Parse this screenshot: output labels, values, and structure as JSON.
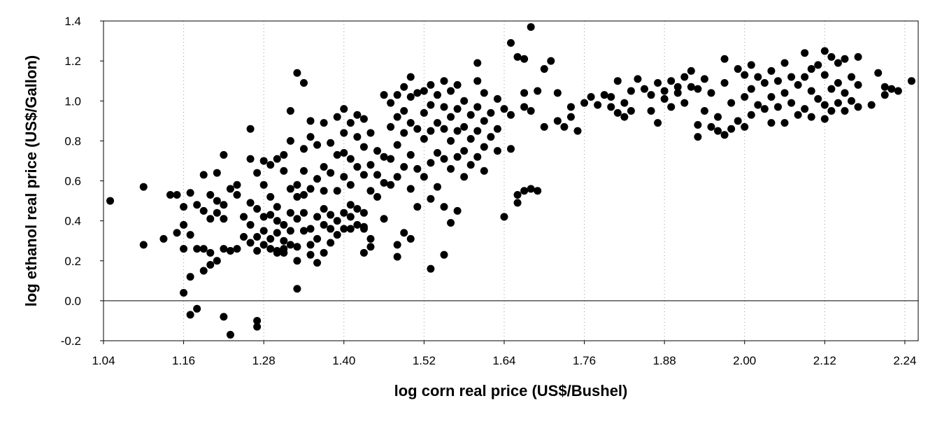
{
  "chart_data": {
    "type": "scatter",
    "xlabel": "log corn real price (US$/Bushel)",
    "ylabel": "log ethanol real price (US$/Gallon)",
    "xlim": [
      1.04,
      2.26
    ],
    "ylim": [
      -0.2,
      1.4
    ],
    "x_ticks": [
      "1.04",
      "1.16",
      "1.28",
      "1.40",
      "1.52",
      "1.64",
      "1.76",
      "1.88",
      "2.00",
      "2.12",
      "2.24"
    ],
    "y_ticks": [
      "-0.2",
      "0.0",
      "0.2",
      "0.4",
      "0.6",
      "0.8",
      "1.0",
      "1.2",
      "1.4"
    ],
    "grid": "vertical dotted at x ticks",
    "reference_line_y": 0.0,
    "marker_color": "#000000",
    "points": [
      [
        1.05,
        0.5
      ],
      [
        1.1,
        0.57
      ],
      [
        1.1,
        0.28
      ],
      [
        1.13,
        0.31
      ],
      [
        1.14,
        0.53
      ],
      [
        1.15,
        0.53
      ],
      [
        1.15,
        0.34
      ],
      [
        1.16,
        0.47
      ],
      [
        1.16,
        0.38
      ],
      [
        1.16,
        0.26
      ],
      [
        1.16,
        0.04
      ],
      [
        1.17,
        0.54
      ],
      [
        1.17,
        0.33
      ],
      [
        1.17,
        0.12
      ],
      [
        1.17,
        -0.07
      ],
      [
        1.18,
        -0.04
      ],
      [
        1.18,
        0.26
      ],
      [
        1.18,
        0.48
      ],
      [
        1.19,
        0.63
      ],
      [
        1.19,
        0.45
      ],
      [
        1.19,
        0.15
      ],
      [
        1.19,
        0.26
      ],
      [
        1.2,
        0.53
      ],
      [
        1.2,
        0.41
      ],
      [
        1.2,
        0.24
      ],
      [
        1.2,
        0.18
      ],
      [
        1.21,
        0.64
      ],
      [
        1.21,
        0.5
      ],
      [
        1.21,
        0.44
      ],
      [
        1.21,
        0.2
      ],
      [
        1.22,
        0.73
      ],
      [
        1.22,
        0.48
      ],
      [
        1.22,
        0.41
      ],
      [
        1.22,
        0.26
      ],
      [
        1.22,
        -0.08
      ],
      [
        1.23,
        0.56
      ],
      [
        1.23,
        0.25
      ],
      [
        1.23,
        -0.17
      ],
      [
        1.24,
        0.58
      ],
      [
        1.24,
        0.53
      ],
      [
        1.24,
        0.26
      ],
      [
        1.25,
        0.42
      ],
      [
        1.25,
        0.32
      ],
      [
        1.26,
        0.49
      ],
      [
        1.26,
        0.38
      ],
      [
        1.26,
        0.29
      ],
      [
        1.27,
        0.46
      ],
      [
        1.27,
        0.32
      ],
      [
        1.27,
        0.25
      ],
      [
        1.28,
        0.42
      ],
      [
        1.28,
        0.35
      ],
      [
        1.28,
        0.28
      ],
      [
        1.29,
        0.31
      ],
      [
        1.29,
        0.26
      ],
      [
        1.3,
        0.4
      ],
      [
        1.3,
        0.34
      ],
      [
        1.3,
        0.25
      ],
      [
        1.29,
        0.43
      ],
      [
        1.31,
        0.38
      ],
      [
        1.31,
        0.3
      ],
      [
        1.31,
        0.26
      ],
      [
        1.32,
        0.44
      ],
      [
        1.32,
        0.35
      ],
      [
        1.32,
        0.28
      ],
      [
        1.33,
        0.41
      ],
      [
        1.33,
        0.27
      ],
      [
        1.34,
        0.65
      ],
      [
        1.34,
        0.53
      ],
      [
        1.34,
        0.44
      ],
      [
        1.34,
        0.35
      ],
      [
        1.35,
        0.36
      ],
      [
        1.35,
        0.28
      ],
      [
        1.36,
        0.42
      ],
      [
        1.36,
        0.31
      ],
      [
        1.37,
        0.46
      ],
      [
        1.37,
        0.38
      ],
      [
        1.38,
        0.43
      ],
      [
        1.38,
        0.36
      ],
      [
        1.38,
        0.29
      ],
      [
        1.39,
        0.4
      ],
      [
        1.39,
        0.33
      ],
      [
        1.4,
        0.44
      ],
      [
        1.4,
        0.36
      ],
      [
        1.41,
        0.42
      ],
      [
        1.41,
        0.36
      ],
      [
        1.41,
        0.48
      ],
      [
        1.42,
        0.46
      ],
      [
        1.42,
        0.38
      ],
      [
        1.43,
        0.44
      ],
      [
        1.43,
        0.37
      ],
      [
        1.26,
        0.86
      ],
      [
        1.26,
        0.71
      ],
      [
        1.27,
        0.64
      ],
      [
        1.28,
        0.7
      ],
      [
        1.28,
        0.58
      ],
      [
        1.29,
        0.52
      ],
      [
        1.29,
        0.68
      ],
      [
        1.3,
        0.71
      ],
      [
        1.3,
        0.47
      ],
      [
        1.31,
        0.73
      ],
      [
        1.31,
        0.65
      ],
      [
        1.32,
        0.95
      ],
      [
        1.32,
        0.8
      ],
      [
        1.32,
        0.56
      ],
      [
        1.33,
        1.14
      ],
      [
        1.33,
        0.58
      ],
      [
        1.33,
        0.52
      ],
      [
        1.34,
        1.09
      ],
      [
        1.34,
        0.76
      ],
      [
        1.35,
        0.9
      ],
      [
        1.35,
        0.82
      ],
      [
        1.35,
        0.56
      ],
      [
        1.36,
        0.78
      ],
      [
        1.36,
        0.61
      ],
      [
        1.37,
        0.89
      ],
      [
        1.37,
        0.67
      ],
      [
        1.37,
        0.55
      ],
      [
        1.38,
        0.79
      ],
      [
        1.38,
        0.64
      ],
      [
        1.39,
        0.92
      ],
      [
        1.39,
        0.73
      ],
      [
        1.39,
        0.55
      ],
      [
        1.4,
        0.96
      ],
      [
        1.4,
        0.84
      ],
      [
        1.4,
        0.74
      ],
      [
        1.4,
        0.62
      ],
      [
        1.41,
        0.89
      ],
      [
        1.41,
        0.71
      ],
      [
        1.41,
        0.58
      ],
      [
        1.42,
        0.93
      ],
      [
        1.42,
        0.82
      ],
      [
        1.42,
        0.67
      ],
      [
        1.43,
        0.91
      ],
      [
        1.43,
        0.77
      ],
      [
        1.43,
        0.63
      ],
      [
        1.44,
        0.84
      ],
      [
        1.44,
        0.68
      ],
      [
        1.44,
        0.55
      ],
      [
        1.45,
        0.75
      ],
      [
        1.45,
        0.63
      ],
      [
        1.45,
        0.52
      ],
      [
        1.46,
        1.03
      ],
      [
        1.46,
        0.72
      ],
      [
        1.46,
        0.59
      ],
      [
        1.3,
        0.24
      ],
      [
        1.31,
        0.24
      ],
      [
        1.33,
        0.2
      ],
      [
        1.33,
        0.06
      ],
      [
        1.35,
        0.23
      ],
      [
        1.36,
        0.19
      ],
      [
        1.37,
        0.24
      ],
      [
        1.27,
        -0.1
      ],
      [
        1.27,
        -0.13
      ],
      [
        1.43,
        0.36
      ],
      [
        1.43,
        0.24
      ],
      [
        1.44,
        0.27
      ],
      [
        1.44,
        0.31
      ],
      [
        1.46,
        0.41
      ],
      [
        1.48,
        0.22
      ],
      [
        1.48,
        0.28
      ],
      [
        1.49,
        0.34
      ],
      [
        1.5,
        0.31
      ],
      [
        1.53,
        0.16
      ],
      [
        1.55,
        0.23
      ],
      [
        1.47,
        0.99
      ],
      [
        1.47,
        0.87
      ],
      [
        1.47,
        0.71
      ],
      [
        1.47,
        0.58
      ],
      [
        1.48,
        1.03
      ],
      [
        1.48,
        0.92
      ],
      [
        1.48,
        0.78
      ],
      [
        1.48,
        0.62
      ],
      [
        1.49,
        1.07
      ],
      [
        1.49,
        0.95
      ],
      [
        1.49,
        0.84
      ],
      [
        1.49,
        0.67
      ],
      [
        1.5,
        1.12
      ],
      [
        1.5,
        1.02
      ],
      [
        1.5,
        0.89
      ],
      [
        1.5,
        0.73
      ],
      [
        1.5,
        0.56
      ],
      [
        1.51,
        1.04
      ],
      [
        1.51,
        0.86
      ],
      [
        1.51,
        0.66
      ],
      [
        1.51,
        0.47
      ],
      [
        1.52,
        1.05
      ],
      [
        1.52,
        0.94
      ],
      [
        1.52,
        0.81
      ],
      [
        1.52,
        0.62
      ],
      [
        1.53,
        1.08
      ],
      [
        1.53,
        0.98
      ],
      [
        1.53,
        0.85
      ],
      [
        1.53,
        0.69
      ],
      [
        1.53,
        0.51
      ],
      [
        1.54,
        1.03
      ],
      [
        1.54,
        0.89
      ],
      [
        1.54,
        0.74
      ],
      [
        1.54,
        0.57
      ],
      [
        1.55,
        1.1
      ],
      [
        1.55,
        0.97
      ],
      [
        1.55,
        0.86
      ],
      [
        1.55,
        0.71
      ],
      [
        1.55,
        0.47
      ],
      [
        1.56,
        1.05
      ],
      [
        1.56,
        0.92
      ],
      [
        1.56,
        0.8
      ],
      [
        1.56,
        0.66
      ],
      [
        1.56,
        0.39
      ],
      [
        1.57,
        1.08
      ],
      [
        1.57,
        0.96
      ],
      [
        1.57,
        0.85
      ],
      [
        1.57,
        0.72
      ],
      [
        1.57,
        0.45
      ],
      [
        1.58,
        1.0
      ],
      [
        1.58,
        0.87
      ],
      [
        1.58,
        0.75
      ],
      [
        1.58,
        0.62
      ],
      [
        1.59,
        0.93
      ],
      [
        1.59,
        0.81
      ],
      [
        1.59,
        0.68
      ],
      [
        1.6,
        1.19
      ],
      [
        1.6,
        1.1
      ],
      [
        1.6,
        0.97
      ],
      [
        1.6,
        0.85
      ],
      [
        1.6,
        0.72
      ],
      [
        1.61,
        1.04
      ],
      [
        1.61,
        0.9
      ],
      [
        1.61,
        0.77
      ],
      [
        1.61,
        0.65
      ],
      [
        1.62,
        0.94
      ],
      [
        1.62,
        0.82
      ],
      [
        1.63,
        1.01
      ],
      [
        1.63,
        0.86
      ],
      [
        1.63,
        0.75
      ],
      [
        1.64,
        0.96
      ],
      [
        1.64,
        0.42
      ],
      [
        1.65,
        1.29
      ],
      [
        1.65,
        0.93
      ],
      [
        1.65,
        0.76
      ],
      [
        1.66,
        1.22
      ],
      [
        1.66,
        0.53
      ],
      [
        1.66,
        0.49
      ],
      [
        1.67,
        1.21
      ],
      [
        1.67,
        1.04
      ],
      [
        1.67,
        0.97
      ],
      [
        1.67,
        0.55
      ],
      [
        1.68,
        1.37
      ],
      [
        1.68,
        0.95
      ],
      [
        1.68,
        0.56
      ],
      [
        1.69,
        1.05
      ],
      [
        1.69,
        0.55
      ],
      [
        1.7,
        1.16
      ],
      [
        1.7,
        0.87
      ],
      [
        1.71,
        1.2
      ],
      [
        1.72,
        1.04
      ],
      [
        1.72,
        0.9
      ],
      [
        1.73,
        0.87
      ],
      [
        1.74,
        0.97
      ],
      [
        1.74,
        0.92
      ],
      [
        1.75,
        0.85
      ],
      [
        1.76,
        0.99
      ],
      [
        1.77,
        1.02
      ],
      [
        1.78,
        0.98
      ],
      [
        1.79,
        1.03
      ],
      [
        1.8,
        1.02
      ],
      [
        1.8,
        0.97
      ],
      [
        1.81,
        1.1
      ],
      [
        1.81,
        0.94
      ],
      [
        1.82,
        0.99
      ],
      [
        1.82,
        0.92
      ],
      [
        1.83,
        1.05
      ],
      [
        1.83,
        0.95
      ],
      [
        1.84,
        1.11
      ],
      [
        1.85,
        1.06
      ],
      [
        1.86,
        1.03
      ],
      [
        1.86,
        0.95
      ],
      [
        1.87,
        1.09
      ],
      [
        1.87,
        0.89
      ],
      [
        1.88,
        1.05
      ],
      [
        1.88,
        1.01
      ],
      [
        1.89,
        1.1
      ],
      [
        1.89,
        0.97
      ],
      [
        1.9,
        1.07
      ],
      [
        1.9,
        1.04
      ],
      [
        1.91,
        1.12
      ],
      [
        1.91,
        0.99
      ],
      [
        1.92,
        1.15
      ],
      [
        1.92,
        1.07
      ],
      [
        1.93,
        1.06
      ],
      [
        1.93,
        0.88
      ],
      [
        1.93,
        0.82
      ],
      [
        1.94,
        1.11
      ],
      [
        1.94,
        0.95
      ],
      [
        1.95,
        1.04
      ],
      [
        1.95,
        0.87
      ],
      [
        1.96,
        0.92
      ],
      [
        1.96,
        0.85
      ],
      [
        1.97,
        1.21
      ],
      [
        1.97,
        1.09
      ],
      [
        1.97,
        0.83
      ],
      [
        1.98,
        0.99
      ],
      [
        1.98,
        0.86
      ],
      [
        1.99,
        1.16
      ],
      [
        1.99,
        0.9
      ],
      [
        2.0,
        1.13
      ],
      [
        2.0,
        1.02
      ],
      [
        2.0,
        0.87
      ],
      [
        2.01,
        1.18
      ],
      [
        2.01,
        1.06
      ],
      [
        2.01,
        0.93
      ],
      [
        2.02,
        1.12
      ],
      [
        2.02,
        0.98
      ],
      [
        2.03,
        1.09
      ],
      [
        2.03,
        0.96
      ],
      [
        2.04,
        1.15
      ],
      [
        2.04,
        1.02
      ],
      [
        2.04,
        0.89
      ],
      [
        2.05,
        1.1
      ],
      [
        2.05,
        0.97
      ],
      [
        2.06,
        1.19
      ],
      [
        2.06,
        1.04
      ],
      [
        2.06,
        0.89
      ],
      [
        2.07,
        1.12
      ],
      [
        2.07,
        0.99
      ],
      [
        2.08,
        1.08
      ],
      [
        2.08,
        0.93
      ],
      [
        2.09,
        1.24
      ],
      [
        2.09,
        1.12
      ],
      [
        2.09,
        0.96
      ],
      [
        2.1,
        1.16
      ],
      [
        2.1,
        1.05
      ],
      [
        2.1,
        0.92
      ],
      [
        2.11,
        1.18
      ],
      [
        2.11,
        1.01
      ],
      [
        2.12,
        1.25
      ],
      [
        2.12,
        1.13
      ],
      [
        2.12,
        0.98
      ],
      [
        2.12,
        0.91
      ],
      [
        2.13,
        1.22
      ],
      [
        2.13,
        1.06
      ],
      [
        2.13,
        0.95
      ],
      [
        2.14,
        1.19
      ],
      [
        2.14,
        1.09
      ],
      [
        2.14,
        0.99
      ],
      [
        2.15,
        1.21
      ],
      [
        2.15,
        1.04
      ],
      [
        2.15,
        0.95
      ],
      [
        2.16,
        1.12
      ],
      [
        2.16,
        1.0
      ],
      [
        2.17,
        1.22
      ],
      [
        2.17,
        1.08
      ],
      [
        2.17,
        0.97
      ],
      [
        2.19,
        0.98
      ],
      [
        2.2,
        1.14
      ],
      [
        2.21,
        1.07
      ],
      [
        2.21,
        1.03
      ],
      [
        2.22,
        1.06
      ],
      [
        2.23,
        1.05
      ],
      [
        2.25,
        1.1
      ]
    ]
  }
}
